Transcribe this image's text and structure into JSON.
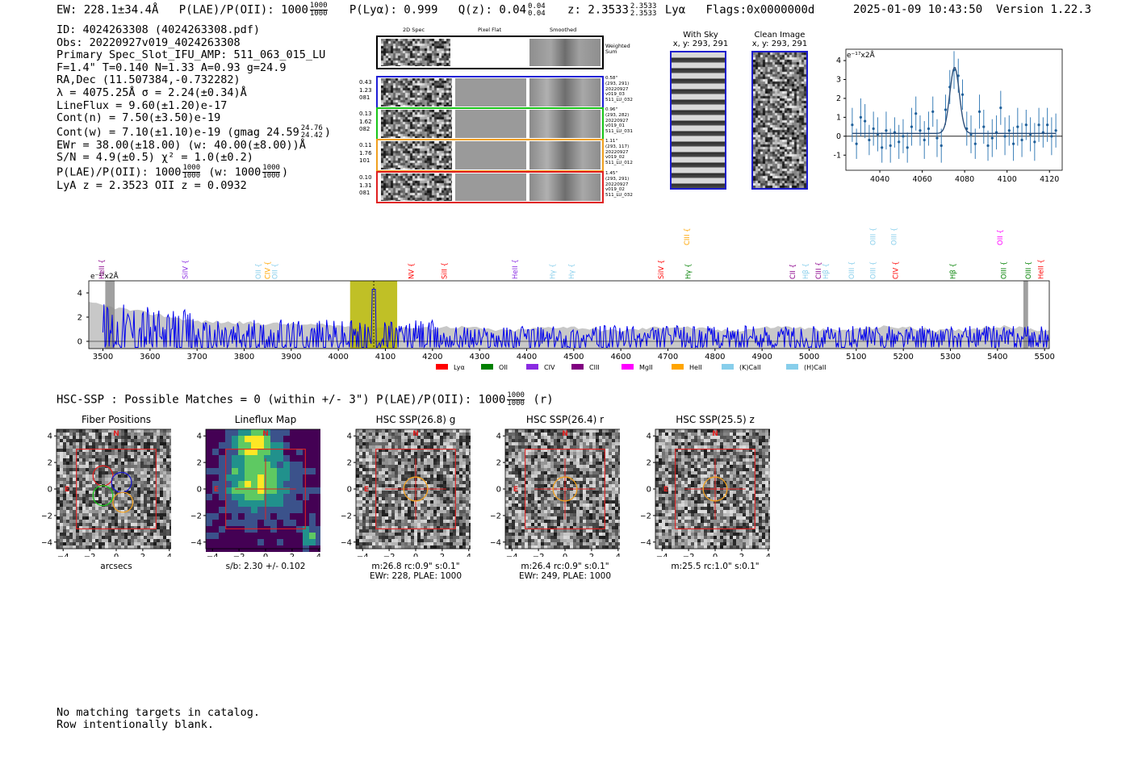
{
  "header": {
    "ew": "EW: 228.1±34.4Å",
    "plae_label": "P(LAE)/P(OII): 1000",
    "plae_hi": "1000",
    "plae_lo": "1000",
    "plya": "P(Lyα): 0.999",
    "qz_label": "Q(z): 0.04",
    "qz_hi": "0.04",
    "qz_lo": "0.04",
    "z_label": "z: 2.3533",
    "z_hi": "2.3533",
    "z_lo": "2.3533",
    "line": "Lyα",
    "flags": "Flags:0x0000000d",
    "datetime": "2025-01-09 10:43:50",
    "version": "Version 1.22.3"
  },
  "info": {
    "id": "ID: 4024263308 (4024263308.pdf)",
    "obs": "Obs: 20220927v019_4024263308",
    "primary": "Primary Spec_Slot_IFU_AMP: 511_063_015_LU",
    "params": "F=1.4\"  T=0.140  N=1.33  A=0.93  g=24.9",
    "radec": "RA,Dec (11.507384,-0.732282)",
    "lambda": "λ = 4075.25Å   σ = 2.24(±0.34)Å",
    "lineflux": "LineFlux = 9.60(±1.20)e-17",
    "contn": "Cont(n) = 7.50(±3.50)e-19",
    "contw": "Cont(w) = 7.10(±1.10)e-19 (gmag 24.59",
    "contw_hi": "24.76",
    "contw_lo": "24.42",
    "contw_end": ")",
    "ewr": "EWr = 38.00(±18.00) (w: 40.00(±8.00))Å",
    "sn": "S/N = 4.9(±0.5)  χ² = 1.0(±0.2)",
    "plae": "P(LAE)/P(OII): 1000",
    "plae_hi": "1000",
    "plae_lo": "1000",
    "plae_w": "(w: 1000",
    "plae_w_hi": "1000",
    "plae_w_lo": "1000",
    "plae_w_end": ")",
    "lya_z": "LyA z = 2.3523  OII z = 0.0932"
  },
  "cutouts": {
    "col_titles": [
      "2D Spec",
      "Pixel Flat",
      "Smoothed"
    ],
    "weighted_sum": "Weighted Sum",
    "rows": [
      {
        "left": [
          "0.43",
          "1.23",
          "081"
        ],
        "right": [
          "0.58\"",
          "(293, 291)",
          "20220927",
          "v019_03",
          "511_LU_032"
        ],
        "color": "#1f1fd6"
      },
      {
        "left": [
          "0.13",
          "1.62",
          "082"
        ],
        "right": [
          "0.96\"",
          "(293, 282)",
          "20220927",
          "v019_01",
          "511_LU_031"
        ],
        "color": "#19c419"
      },
      {
        "left": [
          "0.11",
          "1.76",
          "101"
        ],
        "right": [
          "1.11\"",
          "(293, 117)",
          "20220927",
          "v019_02",
          "511_LU_012"
        ],
        "color": "#f0a020"
      },
      {
        "left": [
          "0.10",
          "1.31",
          "081"
        ],
        "right": [
          "1.45\"",
          "(293, 291)",
          "20220927",
          "v019_02",
          "511_LU_032"
        ],
        "color": "#e02020"
      }
    ],
    "with_sky_title": "With Sky",
    "with_sky_xy": "x, y: 293, 291",
    "clean_title": "Clean Image",
    "clean_xy": "x, y: 293, 291"
  },
  "zoom_chart": {
    "type": "line",
    "ylabel": "e⁻¹⁷x2Å",
    "xlim": [
      4024,
      4126
    ],
    "ylim": [
      -1.8,
      4.6
    ],
    "xticks": [
      4040,
      4060,
      4080,
      4100,
      4120
    ],
    "yticks": [
      -1,
      0,
      1,
      2,
      3,
      4
    ],
    "x": [
      4027,
      4029,
      4031,
      4033,
      4035,
      4037,
      4039,
      4041,
      4043,
      4045,
      4047,
      4049,
      4051,
      4053,
      4055,
      4057,
      4059,
      4061,
      4063,
      4065,
      4067,
      4069,
      4071,
      4073,
      4075,
      4077,
      4079,
      4081,
      4083,
      4085,
      4087,
      4089,
      4091,
      4093,
      4095,
      4097,
      4099,
      4101,
      4103,
      4105,
      4107,
      4109,
      4111,
      4113,
      4115,
      4117,
      4119,
      4121,
      4123
    ],
    "values": [
      0.6,
      -0.4,
      1.0,
      0.8,
      -0.2,
      0.4,
      0.1,
      -0.6,
      0.3,
      -0.5,
      0.2,
      -0.3,
      0.0,
      -0.6,
      0.5,
      1.2,
      0.3,
      -0.2,
      0.4,
      1.3,
      -0.1,
      -0.5,
      1.4,
      2.6,
      3.5,
      3.2,
      2.2,
      0.4,
      0.1,
      -0.4,
      1.3,
      0.5,
      -0.5,
      -0.1,
      0.2,
      1.5,
      0.0,
      0.3,
      -0.4,
      0.5,
      -0.2,
      0.6,
      0.1,
      -0.3,
      0.6,
      0.2,
      0.6,
      0.0,
      0.3
    ],
    "errors": [
      0.9,
      0.8,
      1.0,
      0.9,
      0.8,
      0.9,
      0.9,
      0.8,
      1.0,
      0.9,
      0.8,
      0.9,
      0.9,
      0.8,
      1.0,
      0.9,
      0.8,
      1.0,
      0.9,
      0.8,
      1.0,
      0.9,
      0.8,
      0.9,
      1.0,
      0.9,
      0.8,
      0.9,
      1.0,
      0.8,
      0.9,
      0.9,
      0.8,
      1.0,
      0.9,
      0.9,
      1.0,
      0.8,
      0.9,
      1.0,
      0.9,
      0.8,
      0.9,
      1.0,
      0.9,
      0.8,
      0.9,
      1.0,
      0.9
    ],
    "fit_center": 4075.25,
    "fit_sigma": 2.24,
    "fit_amp": 3.5,
    "fit_cont": 0.15
  },
  "chart_data": {
    "type": "line",
    "title": "",
    "xlabel": "",
    "ylabel": "e⁻¹⁷x2Å",
    "xlim": [
      3470,
      5510
    ],
    "ylim": [
      -0.6,
      5.0
    ],
    "xticks": [
      3500,
      3600,
      3700,
      3800,
      3900,
      4000,
      4100,
      4200,
      4300,
      4400,
      4500,
      4600,
      4700,
      4800,
      4900,
      5000,
      5100,
      5200,
      5300,
      5400,
      5500
    ],
    "yticks": [
      0,
      2,
      4
    ],
    "highlight_band": [
      4025,
      4125
    ],
    "emission_line": 4075.25,
    "masked_regions": [
      [
        3505,
        3525
      ],
      [
        5455,
        5465
      ]
    ],
    "series": [
      {
        "name": "flux",
        "color": "#0000ee"
      },
      {
        "name": "error",
        "color": "#bdbdbd"
      }
    ],
    "line_markers": [
      {
        "label": "HeII",
        "x": 3497,
        "color": "#8b008b",
        "row": 0
      },
      {
        "label": "SiIV",
        "x": 3675,
        "color": "#8a2be2",
        "row": 0
      },
      {
        "label": "OII",
        "x": 3830,
        "color": "#87ceeb",
        "row": 0
      },
      {
        "label": "CIV",
        "x": 3850,
        "color": "#ffa500",
        "row": 0
      },
      {
        "label": "OII",
        "x": 3865,
        "color": "#87ceeb",
        "row": 0
      },
      {
        "label": "NV",
        "x": 4155,
        "color": "#ff0000",
        "row": 0
      },
      {
        "label": "SiII",
        "x": 4225,
        "color": "#ff0000",
        "row": 0
      },
      {
        "label": "HeII",
        "x": 4375,
        "color": "#8a2be2",
        "row": 0
      },
      {
        "label": "Hγ",
        "x": 4455,
        "color": "#87ceeb",
        "row": 0
      },
      {
        "label": "Hγ",
        "x": 4495,
        "color": "#87ceeb",
        "row": 0
      },
      {
        "label": "SiIV",
        "x": 4685,
        "color": "#ff0000",
        "row": 0
      },
      {
        "label": "CIII",
        "x": 4740,
        "color": "#ffa500",
        "row": 1
      },
      {
        "label": "Hγ",
        "x": 4743,
        "color": "#008000",
        "row": 0
      },
      {
        "label": "CII",
        "x": 4965,
        "color": "#8b008b",
        "row": 0
      },
      {
        "label": "Hβ",
        "x": 4992,
        "color": "#87ceeb",
        "row": 0
      },
      {
        "label": "CIII",
        "x": 5020,
        "color": "#8b008b",
        "row": 0
      },
      {
        "label": "Hβ",
        "x": 5035,
        "color": "#87ceeb",
        "row": 0
      },
      {
        "label": "OIII",
        "x": 5090,
        "color": "#87ceeb",
        "row": 0
      },
      {
        "label": "OIII",
        "x": 5135,
        "color": "#87ceeb",
        "row": 0
      },
      {
        "label": "OIII",
        "x": 5135,
        "color": "#87ceeb",
        "row": 1
      },
      {
        "label": "OIII",
        "x": 5180,
        "color": "#87ceeb",
        "row": 1
      },
      {
        "label": "CIV",
        "x": 5183,
        "color": "#ff0000",
        "row": 0
      },
      {
        "label": "Hβ",
        "x": 5305,
        "color": "#008000",
        "row": 0
      },
      {
        "label": "OII",
        "x": 5405,
        "color": "#ff00ff",
        "row": 1
      },
      {
        "label": "OIII",
        "x": 5413,
        "color": "#008000",
        "row": 0
      },
      {
        "label": "OIII",
        "x": 5465,
        "color": "#008000",
        "row": 0
      },
      {
        "label": "HeII",
        "x": 5492,
        "color": "#ff0000",
        "row": 0
      }
    ],
    "legend": [
      {
        "label": "Lyα",
        "color": "#ff0000"
      },
      {
        "label": "OII",
        "color": "#008000"
      },
      {
        "label": "CIV",
        "color": "#8a2be2"
      },
      {
        "label": "CIII",
        "color": "#800080"
      },
      {
        "label": "MgII",
        "color": "#ff00ff"
      },
      {
        "label": "HeII",
        "color": "#ffa500"
      },
      {
        "label": "(K)CaII",
        "color": "#87ceeb"
      },
      {
        "label": "(H)CaII",
        "color": "#87ceeb"
      }
    ]
  },
  "hsc": {
    "title": "HSC-SSP : Possible Matches = 0 (within +/- 3\")  P(LAE)/P(OII): 1000",
    "title_hi": "1000",
    "title_lo": "1000",
    "title_end": "(r)"
  },
  "maps": [
    {
      "title": "Fiber Positions",
      "caption": [
        "arcsecs"
      ],
      "kind": "fibers"
    },
    {
      "title": "Lineflux Map",
      "caption": [
        "s/b: 2.30 +/- 0.102"
      ],
      "kind": "lineflux"
    },
    {
      "title": "HSC SSP(26.8) g",
      "caption": [
        "m:26.8 rc:0.9\"  s:0.1\"",
        "EWr: 228, PLAE: 1000"
      ],
      "kind": "hsc"
    },
    {
      "title": "HSC SSP(26.4) r",
      "caption": [
        "m:26.4 rc:0.9\"  s:0.1\"",
        "EWr: 249, PLAE: 1000"
      ],
      "kind": "hsc"
    },
    {
      "title": "HSC SSP(25.5) z",
      "caption": [
        "m:25.5 rc:1.0\"  s:0.1\""
      ],
      "kind": "hsc"
    }
  ],
  "map_ticks": [
    "−4",
    "−2",
    "0",
    "2",
    "4"
  ],
  "map_marks": {
    "north": "N",
    "east": "E"
  },
  "footer": {
    "line1": "No matching targets in catalog.",
    "line2": "Row intentionally blank."
  }
}
